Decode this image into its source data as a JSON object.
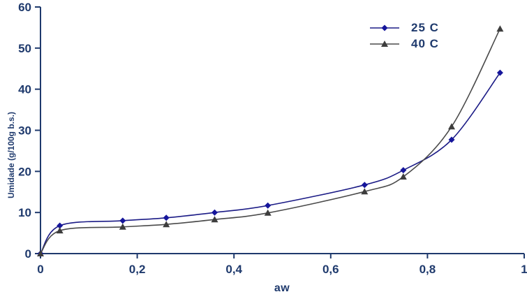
{
  "chart_data": {
    "type": "line",
    "title": "",
    "xlabel": "aw",
    "ylabel": "Umidade (g/100g b.s.)",
    "xlim": [
      0,
      1
    ],
    "ylim": [
      0,
      60
    ],
    "grid": false,
    "legend_position": "top-right-inside",
    "x_ticks": [
      {
        "value": 0,
        "label": "0"
      },
      {
        "value": 0.2,
        "label": "0,2"
      },
      {
        "value": 0.4,
        "label": "0,4"
      },
      {
        "value": 0.6,
        "label": "0,6"
      },
      {
        "value": 0.8,
        "label": "0,8"
      },
      {
        "value": 1,
        "label": "1"
      }
    ],
    "y_ticks": [
      {
        "value": 0,
        "label": "0"
      },
      {
        "value": 10,
        "label": "10"
      },
      {
        "value": 20,
        "label": "20"
      },
      {
        "value": 30,
        "label": "30"
      },
      {
        "value": 40,
        "label": "40"
      },
      {
        "value": 50,
        "label": "50"
      },
      {
        "value": 60,
        "label": "60"
      }
    ],
    "x": [
      0,
      0.04,
      0.17,
      0.26,
      0.36,
      0.47,
      0.67,
      0.75,
      0.85,
      0.95
    ],
    "series": [
      {
        "name": "25 C",
        "marker": "diamond",
        "line_color": "#1b1b86",
        "marker_color": "#16169b",
        "values": [
          0,
          6.8,
          8.0,
          8.7,
          10.0,
          11.7,
          16.7,
          20.3,
          27.7,
          44.0
        ]
      },
      {
        "name": "40 C",
        "marker": "triangle",
        "line_color": "#4a4a4a",
        "marker_color": "#3d3d3d",
        "values": [
          0,
          5.6,
          6.5,
          7.1,
          8.3,
          9.9,
          15.1,
          18.7,
          30.9,
          54.7
        ]
      }
    ]
  },
  "colors": {
    "background": "#ffffff",
    "axis": "#1f3a6d",
    "text": "#1f3a6d"
  }
}
